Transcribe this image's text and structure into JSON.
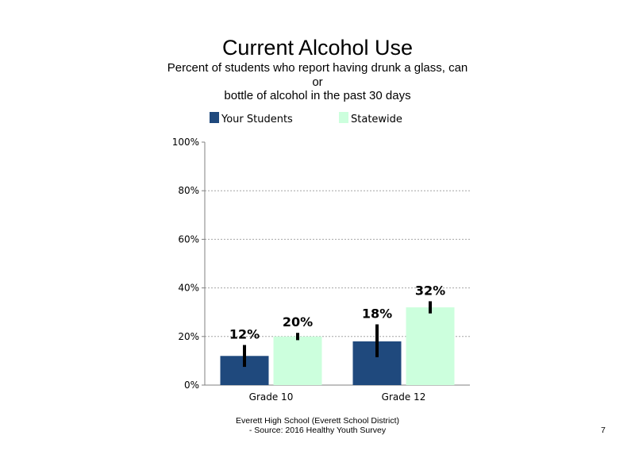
{
  "chart_data": {
    "type": "bar",
    "title": "Current Alcohol Use",
    "subtitle_lines": [
      "Percent of students who report having drunk a glass, can",
      "or",
      "bottle of alcohol in the past 30 days"
    ],
    "categories": [
      "Grade 10",
      "Grade 12"
    ],
    "series": [
      {
        "name": "Your Students",
        "values": [
          12,
          18
        ],
        "value_labels": [
          "12%",
          "18%"
        ],
        "error_low": [
          7.5,
          11.5
        ],
        "error_high": [
          16.5,
          25
        ],
        "color": "#1f497d"
      },
      {
        "name": "Statewide",
        "values": [
          20,
          32
        ],
        "value_labels": [
          "20%",
          "32%"
        ],
        "error_low": [
          18.5,
          29.5
        ],
        "error_high": [
          21.5,
          34.5
        ],
        "color": "#ccffdd"
      }
    ],
    "ylim": [
      0,
      100
    ],
    "yticks": [
      0,
      20,
      40,
      60,
      80,
      100
    ],
    "ytick_labels": [
      "0%",
      "20%",
      "40%",
      "60%",
      "80%",
      "100%"
    ],
    "xlabel": "",
    "ylabel": "",
    "grid": true,
    "legend_position": "top"
  },
  "footer": {
    "line1": "Everett High School (Everett School District)",
    "line2": "- Source: 2016 Healthy Youth Survey"
  },
  "page_number": "7"
}
